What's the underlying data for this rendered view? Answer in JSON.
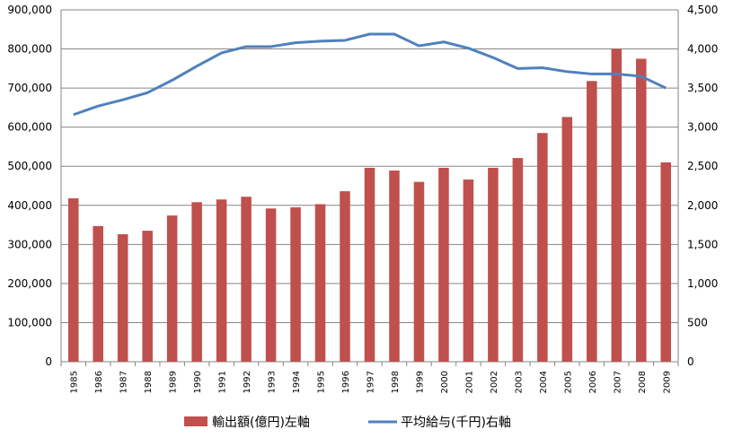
{
  "chart_data": {
    "type": "bar+line",
    "categories": [
      "1985",
      "1986",
      "1987",
      "1988",
      "1989",
      "1990",
      "1991",
      "1992",
      "1993",
      "1994",
      "1995",
      "1996",
      "1997",
      "1998",
      "1999",
      "2000",
      "2001",
      "2002",
      "2003",
      "2004",
      "2005",
      "2006",
      "2007",
      "2008",
      "2009"
    ],
    "series": [
      {
        "name": "輸出額(億円)左軸",
        "type": "bar",
        "axis": "left",
        "color": "#c0504d",
        "values": [
          418000,
          347000,
          326000,
          335000,
          374000,
          408000,
          415000,
          422000,
          392000,
          395000,
          403000,
          436000,
          496000,
          489000,
          460000,
          496000,
          466000,
          496000,
          521000,
          585000,
          626000,
          718000,
          800000,
          775000,
          510000
        ]
      },
      {
        "name": "平均給与(千円)右軸",
        "type": "line",
        "axis": "right",
        "color": "#4f81bd",
        "values": [
          3160,
          3270,
          3350,
          3440,
          3600,
          3780,
          3950,
          4030,
          4030,
          4080,
          4100,
          4110,
          4190,
          4190,
          4040,
          4090,
          4010,
          3890,
          3750,
          3760,
          3710,
          3680,
          3680,
          3650,
          3500
        ]
      }
    ],
    "left_axis": {
      "min": 0,
      "max": 900000,
      "ticks": [
        "0",
        "100,000",
        "200,000",
        "300,000",
        "400,000",
        "500,000",
        "600,000",
        "700,000",
        "800,000",
        "900,000"
      ]
    },
    "right_axis": {
      "min": 0,
      "max": 4500,
      "ticks": [
        "0",
        "500",
        "1,000",
        "1,500",
        "2,000",
        "2,500",
        "3,000",
        "3,500",
        "4,000",
        "4,500"
      ]
    },
    "grid": true,
    "legend_position": "bottom",
    "gridline_color": "#868686"
  }
}
